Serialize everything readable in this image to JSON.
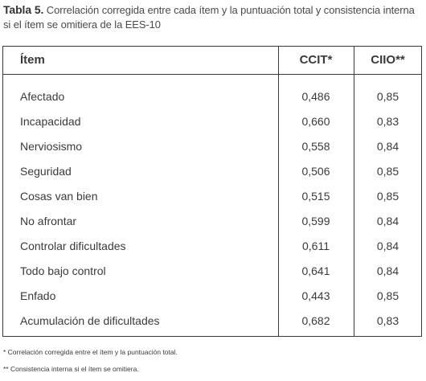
{
  "caption": {
    "label": "Tabla 5.",
    "text": " Correlación corregida entre cada ítem y la puntuación total y consistencia interna si el ítem se omitiera de la EES-10"
  },
  "table": {
    "headers": [
      "Ítem",
      "CCIT*",
      "CIIO**"
    ],
    "rows": [
      {
        "item": "Afectado",
        "ccit": "0,486",
        "ciio": "0,85"
      },
      {
        "item": "Incapacidad",
        "ccit": "0,660",
        "ciio": "0,83"
      },
      {
        "item": "Nerviosismo",
        "ccit": "0,558",
        "ciio": "0,84"
      },
      {
        "item": "Seguridad",
        "ccit": "0,506",
        "ciio": "0,85"
      },
      {
        "item": "Cosas van bien",
        "ccit": "0,515",
        "ciio": "0,85"
      },
      {
        "item": "No afrontar",
        "ccit": "0,599",
        "ciio": "0,84"
      },
      {
        "item": "Controlar dificultades",
        "ccit": "0,611",
        "ciio": "0,84"
      },
      {
        "item": "Todo bajo control",
        "ccit": "0,641",
        "ciio": "0,84"
      },
      {
        "item": "Enfado",
        "ccit": "0,443",
        "ciio": "0,85"
      },
      {
        "item": "Acumulación de dificultades",
        "ccit": "0,682",
        "ciio": "0,83"
      }
    ]
  },
  "notes": [
    "* Correlación corregida entre el ítem y la puntuación total.",
    "** Consistencia interna si el ítem se omitiera."
  ]
}
